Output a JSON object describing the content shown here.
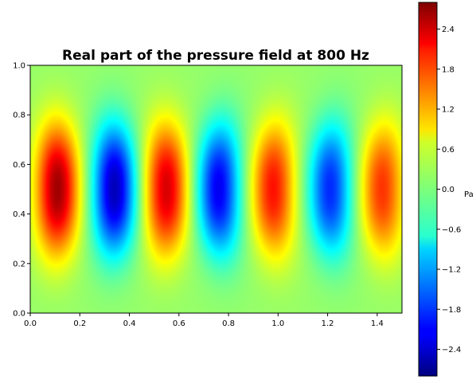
{
  "chart_data": {
    "type": "heatmap",
    "title": "Real part of the pressure field at 800 Hz",
    "xlabel": "",
    "ylabel": "",
    "xlim": [
      0,
      1.5
    ],
    "ylim": [
      0,
      1.0
    ],
    "x_ticks": [
      "0.0",
      "0.2",
      "0.4",
      "0.6",
      "0.8",
      "1.0",
      "1.2",
      "1.4"
    ],
    "y_ticks": [
      "0.0",
      "0.2",
      "0.4",
      "0.6",
      "0.8",
      "1.0"
    ],
    "colormap": "jet",
    "colorbar": {
      "unit": "Pa",
      "range": [
        -2.8,
        2.8
      ],
      "ticks": [
        "2.4",
        "1.8",
        "1.2",
        "0.6",
        "0.0",
        "−0.6",
        "−1.2",
        "−1.8",
        "−2.4"
      ],
      "tick_values": [
        2.4,
        1.8,
        1.2,
        0.6,
        0.0,
        -0.6,
        -1.2,
        -1.8,
        -2.4
      ]
    },
    "field_extrema": [
      {
        "x": 0.11,
        "y": 0.5,
        "value": 2.5
      },
      {
        "x": 0.34,
        "y": 0.5,
        "value": -2.6
      },
      {
        "x": 0.55,
        "y": 0.5,
        "value": 2.2
      },
      {
        "x": 0.76,
        "y": 0.5,
        "value": -2.3
      },
      {
        "x": 0.98,
        "y": 0.5,
        "value": 1.9
      },
      {
        "x": 1.21,
        "y": 0.5,
        "value": -2.0
      },
      {
        "x": 1.42,
        "y": 0.5,
        "value": 1.7
      }
    ]
  }
}
